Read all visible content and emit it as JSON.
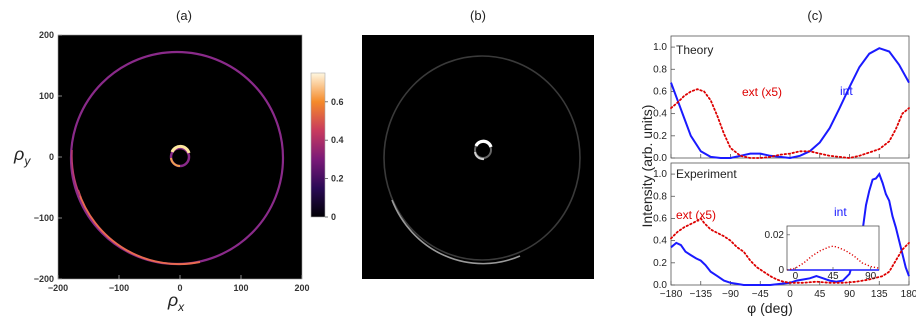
{
  "panels": {
    "a": {
      "label": "(a)",
      "type": "heatmap",
      "xlabel": "ρ",
      "xlabel_sub": "x",
      "ylabel": "ρ",
      "ylabel_sub": "y",
      "xlim": [
        -200,
        200
      ],
      "ylim": [
        -200,
        200
      ],
      "x_ticks": [
        "-200",
        "-100",
        "0",
        "100",
        "200"
      ],
      "y_ticks": [
        "200",
        "100",
        "0",
        "-100",
        "-200"
      ],
      "colorbar": {
        "ticks": [
          "0.6",
          "0.4",
          "0.2",
          "0"
        ],
        "range": [
          0,
          0.75
        ]
      },
      "rings": [
        {
          "radius": 172,
          "center": [
            -5,
            -2
          ],
          "peak": 0.55
        },
        {
          "radius": 13,
          "center": [
            2,
            3
          ],
          "peak": 0.75
        }
      ]
    },
    "b": {
      "label": "(b)",
      "type": "image"
    },
    "c": {
      "label": "(c)",
      "type": "line",
      "xlabel": "φ (deg)",
      "ylabel": "Intensity (arb. units)",
      "x_ticks": [
        "-180",
        "-135",
        "-90",
        "-45",
        "0",
        "45",
        "90",
        "135",
        "180"
      ],
      "y_ticks": [
        "0.0",
        "0.2",
        "0.4",
        "0.6",
        "0.8",
        "1.0"
      ],
      "top": {
        "label": "Theory",
        "series": [
          {
            "name": "int",
            "color": "#1a1aff",
            "style": "solid",
            "x": [
              -180,
              -170,
              -160,
              -150,
              -135,
              -120,
              -105,
              -90,
              -75,
              -60,
              -45,
              -30,
              -15,
              0,
              15,
              30,
              45,
              60,
              75,
              90,
              105,
              120,
              135,
              150,
              165,
              180
            ],
            "y": [
              0.68,
              0.52,
              0.36,
              0.2,
              0.06,
              0.01,
              0.0,
              0.0,
              0.02,
              0.04,
              0.04,
              0.02,
              0.01,
              0.0,
              0.02,
              0.06,
              0.14,
              0.27,
              0.45,
              0.64,
              0.82,
              0.94,
              0.99,
              0.96,
              0.84,
              0.68
            ]
          },
          {
            "name": "ext (x5)",
            "color": "#dd0000",
            "style": "dotted",
            "x": [
              -180,
              -170,
              -160,
              -150,
              -140,
              -130,
              -120,
              -110,
              -100,
              -90,
              -75,
              -60,
              -45,
              -30,
              -15,
              0,
              15,
              30,
              45,
              60,
              75,
              90,
              105,
              120,
              135,
              150,
              160,
              170,
              180
            ],
            "y": [
              0.45,
              0.5,
              0.56,
              0.6,
              0.62,
              0.6,
              0.52,
              0.38,
              0.22,
              0.09,
              0.02,
              0.0,
              0.0,
              0.01,
              0.03,
              0.04,
              0.06,
              0.06,
              0.04,
              0.02,
              0.01,
              0.0,
              0.02,
              0.05,
              0.08,
              0.15,
              0.26,
              0.4,
              0.45
            ]
          }
        ]
      },
      "bottom": {
        "label": "Experiment",
        "series": [
          {
            "name": "int",
            "color": "#1a1aff",
            "style": "solid",
            "x": [
              -180,
              -172,
              -165,
              -158,
              -150,
              -142,
              -135,
              -128,
              -120,
              -110,
              -100,
              -90,
              -80,
              -70,
              -60,
              -45,
              -30,
              -15,
              0,
              10,
              20,
              30,
              40,
              50,
              60,
              70,
              80,
              90,
              100,
              110,
              115,
              120,
              125,
              130,
              135,
              140,
              145,
              150,
              155,
              160,
              165,
              170,
              175,
              180
            ],
            "y": [
              0.34,
              0.38,
              0.36,
              0.3,
              0.27,
              0.24,
              0.22,
              0.18,
              0.12,
              0.08,
              0.04,
              0.02,
              0.01,
              0.0,
              0.0,
              0.0,
              0.0,
              0.01,
              0.02,
              0.04,
              0.05,
              0.06,
              0.08,
              0.06,
              0.04,
              0.03,
              0.04,
              0.1,
              0.3,
              0.5,
              0.72,
              0.85,
              0.95,
              0.96,
              1.0,
              0.92,
              0.82,
              0.76,
              0.62,
              0.52,
              0.4,
              0.28,
              0.16,
              0.08
            ]
          },
          {
            "name": "ext (x5)",
            "color": "#dd0000",
            "style": "dotted",
            "x": [
              -180,
              -170,
              -160,
              -150,
              -140,
              -135,
              -130,
              -120,
              -110,
              -100,
              -90,
              -80,
              -70,
              -60,
              -50,
              -40,
              -30,
              -20,
              -10,
              0,
              20,
              40,
              60,
              80,
              100,
              120,
              140,
              150,
              160,
              170,
              180
            ],
            "y": [
              0.42,
              0.48,
              0.52,
              0.55,
              0.58,
              0.6,
              0.56,
              0.5,
              0.47,
              0.44,
              0.4,
              0.34,
              0.3,
              0.22,
              0.16,
              0.12,
              0.08,
              0.05,
              0.03,
              0.02,
              0.02,
              0.03,
              0.02,
              0.02,
              0.03,
              0.05,
              0.08,
              0.12,
              0.22,
              0.32,
              0.38
            ]
          }
        ],
        "inset": {
          "x_ticks": [
            "0",
            "45",
            "90"
          ],
          "y_ticks": [
            "0.02",
            "0"
          ],
          "xlim": [
            -10,
            100
          ],
          "ylim": [
            0,
            0.025
          ],
          "series": [
            {
              "name": "int",
              "color": "#1a1aff",
              "style": "solid",
              "x": [
                -10,
                0,
                15,
                30,
                45,
                60,
                75,
                90,
                100
              ],
              "y": [
                0.0,
                0.0,
                0.0,
                0.0,
                0.0,
                0.0,
                0.0,
                0.0,
                0.0
              ]
            },
            {
              "name": "ext (x5)",
              "color": "#dd0000",
              "style": "dotted",
              "x": [
                -10,
                0,
                10,
                20,
                30,
                40,
                45,
                50,
                60,
                70,
                80,
                90,
                100
              ],
              "y": [
                0.0,
                0.001,
                0.004,
                0.008,
                0.011,
                0.013,
                0.0135,
                0.013,
                0.011,
                0.008,
                0.004,
                0.002,
                0.001
              ]
            }
          ]
        }
      },
      "xlim": [
        -180,
        180
      ],
      "ylim": [
        0,
        1.1
      ]
    }
  }
}
